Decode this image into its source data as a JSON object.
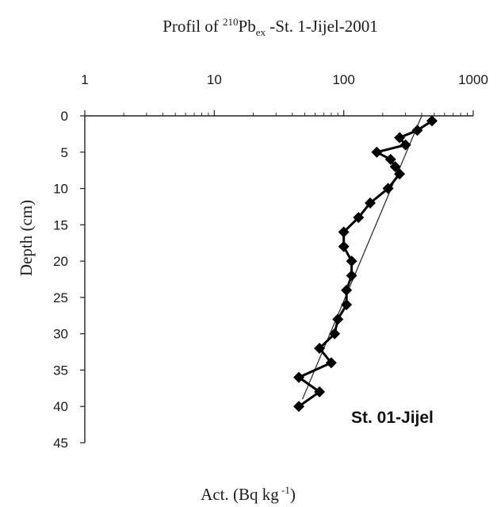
{
  "chart_data": {
    "type": "line",
    "title": {
      "prefix": "Profil of ",
      "superscript": "210",
      "element": "Pb",
      "subscript": "ex",
      "suffix": " -St. 1-Jijel-2001"
    },
    "xlabel": {
      "text": "Act. (Bq kg",
      "superscript": " -1",
      "close": ")"
    },
    "ylabel": "Depth  (cm)",
    "x_scale": "log",
    "x_axis_position": "top",
    "xlim": [
      1,
      1000
    ],
    "x_ticks": [
      1,
      10,
      100,
      1000
    ],
    "x_tick_labels": [
      "1",
      "10",
      "100",
      "1000"
    ],
    "y_inverted": true,
    "ylim": [
      0,
      45
    ],
    "y_ticks": [
      0,
      5,
      10,
      15,
      20,
      25,
      30,
      35,
      40,
      45
    ],
    "y_tick_labels": [
      "0",
      "5",
      "10",
      "15",
      "20",
      "25",
      "30",
      "35",
      "40",
      "45"
    ],
    "grid": false,
    "annotation": "St. 01-Jijel",
    "series": [
      {
        "marker": "diamond",
        "points": [
          {
            "x": 480,
            "y": 0.7
          },
          {
            "x": 370,
            "y": 2
          },
          {
            "x": 270,
            "y": 3
          },
          {
            "x": 300,
            "y": 4
          },
          {
            "x": 180,
            "y": 5
          },
          {
            "x": 230,
            "y": 6
          },
          {
            "x": 250,
            "y": 7
          },
          {
            "x": 270,
            "y": 8
          },
          {
            "x": 220,
            "y": 10
          },
          {
            "x": 160,
            "y": 12
          },
          {
            "x": 130,
            "y": 14
          },
          {
            "x": 100,
            "y": 16
          },
          {
            "x": 100,
            "y": 18
          },
          {
            "x": 115,
            "y": 20
          },
          {
            "x": 115,
            "y": 22
          },
          {
            "x": 105,
            "y": 24
          },
          {
            "x": 105,
            "y": 26
          },
          {
            "x": 90,
            "y": 28
          },
          {
            "x": 85,
            "y": 30
          },
          {
            "x": 65,
            "y": 32
          },
          {
            "x": 80,
            "y": 34
          },
          {
            "x": 45,
            "y": 36
          },
          {
            "x": 65,
            "y": 38
          },
          {
            "x": 45,
            "y": 40
          }
        ]
      },
      {
        "marker": "none",
        "points": [
          {
            "x": 400,
            "y": 0
          },
          {
            "x": 48,
            "y": 39
          }
        ]
      }
    ]
  }
}
